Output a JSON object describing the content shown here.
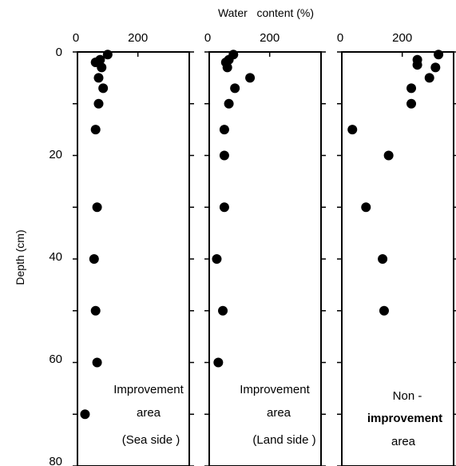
{
  "chart_data": {
    "type": "scatter",
    "xlabel": "Water   content (%)",
    "ylabel": "Depth (cm)",
    "ylim": [
      0,
      80
    ],
    "y_ticks": [
      "0",
      "20",
      "40",
      "60",
      "80"
    ],
    "x_tick_labels": [
      "0",
      "200"
    ],
    "grid": false,
    "panels": [
      {
        "label_lines": [
          "Improvement",
          "area",
          "(Sea side )"
        ],
        "xlim": [
          0,
          370
        ],
        "points": [
          {
            "x": 100,
            "y": 0.5
          },
          {
            "x": 75,
            "y": 1.5
          },
          {
            "x": 60,
            "y": 2
          },
          {
            "x": 80,
            "y": 3
          },
          {
            "x": 70,
            "y": 5
          },
          {
            "x": 85,
            "y": 7
          },
          {
            "x": 70,
            "y": 10
          },
          {
            "x": 60,
            "y": 15
          },
          {
            "x": 65,
            "y": 30
          },
          {
            "x": 55,
            "y": 40
          },
          {
            "x": 60,
            "y": 50
          },
          {
            "x": 65,
            "y": 60
          },
          {
            "x": 25,
            "y": 70
          }
        ]
      },
      {
        "label_lines": [
          "Improvement",
          "area",
          "(Land side )"
        ],
        "xlim": [
          0,
          370
        ],
        "points": [
          {
            "x": 80,
            "y": 0.5
          },
          {
            "x": 65,
            "y": 1.5
          },
          {
            "x": 55,
            "y": 2
          },
          {
            "x": 60,
            "y": 3
          },
          {
            "x": 135,
            "y": 5
          },
          {
            "x": 85,
            "y": 7
          },
          {
            "x": 65,
            "y": 10
          },
          {
            "x": 50,
            "y": 15
          },
          {
            "x": 50,
            "y": 20
          },
          {
            "x": 50,
            "y": 30
          },
          {
            "x": 25,
            "y": 40
          },
          {
            "x": 45,
            "y": 50
          },
          {
            "x": 30,
            "y": 60
          }
        ]
      },
      {
        "label_lines": [
          "Non -",
          "improvement",
          "area"
        ],
        "xlim": [
          0,
          370
        ],
        "points": [
          {
            "x": 320,
            "y": 0.5
          },
          {
            "x": 250,
            "y": 1.5
          },
          {
            "x": 250,
            "y": 2.5
          },
          {
            "x": 310,
            "y": 3
          },
          {
            "x": 290,
            "y": 5
          },
          {
            "x": 230,
            "y": 7
          },
          {
            "x": 230,
            "y": 10
          },
          {
            "x": 35,
            "y": 15
          },
          {
            "x": 155,
            "y": 20
          },
          {
            "x": 80,
            "y": 30
          },
          {
            "x": 135,
            "y": 40
          },
          {
            "x": 140,
            "y": 50
          }
        ]
      }
    ]
  }
}
